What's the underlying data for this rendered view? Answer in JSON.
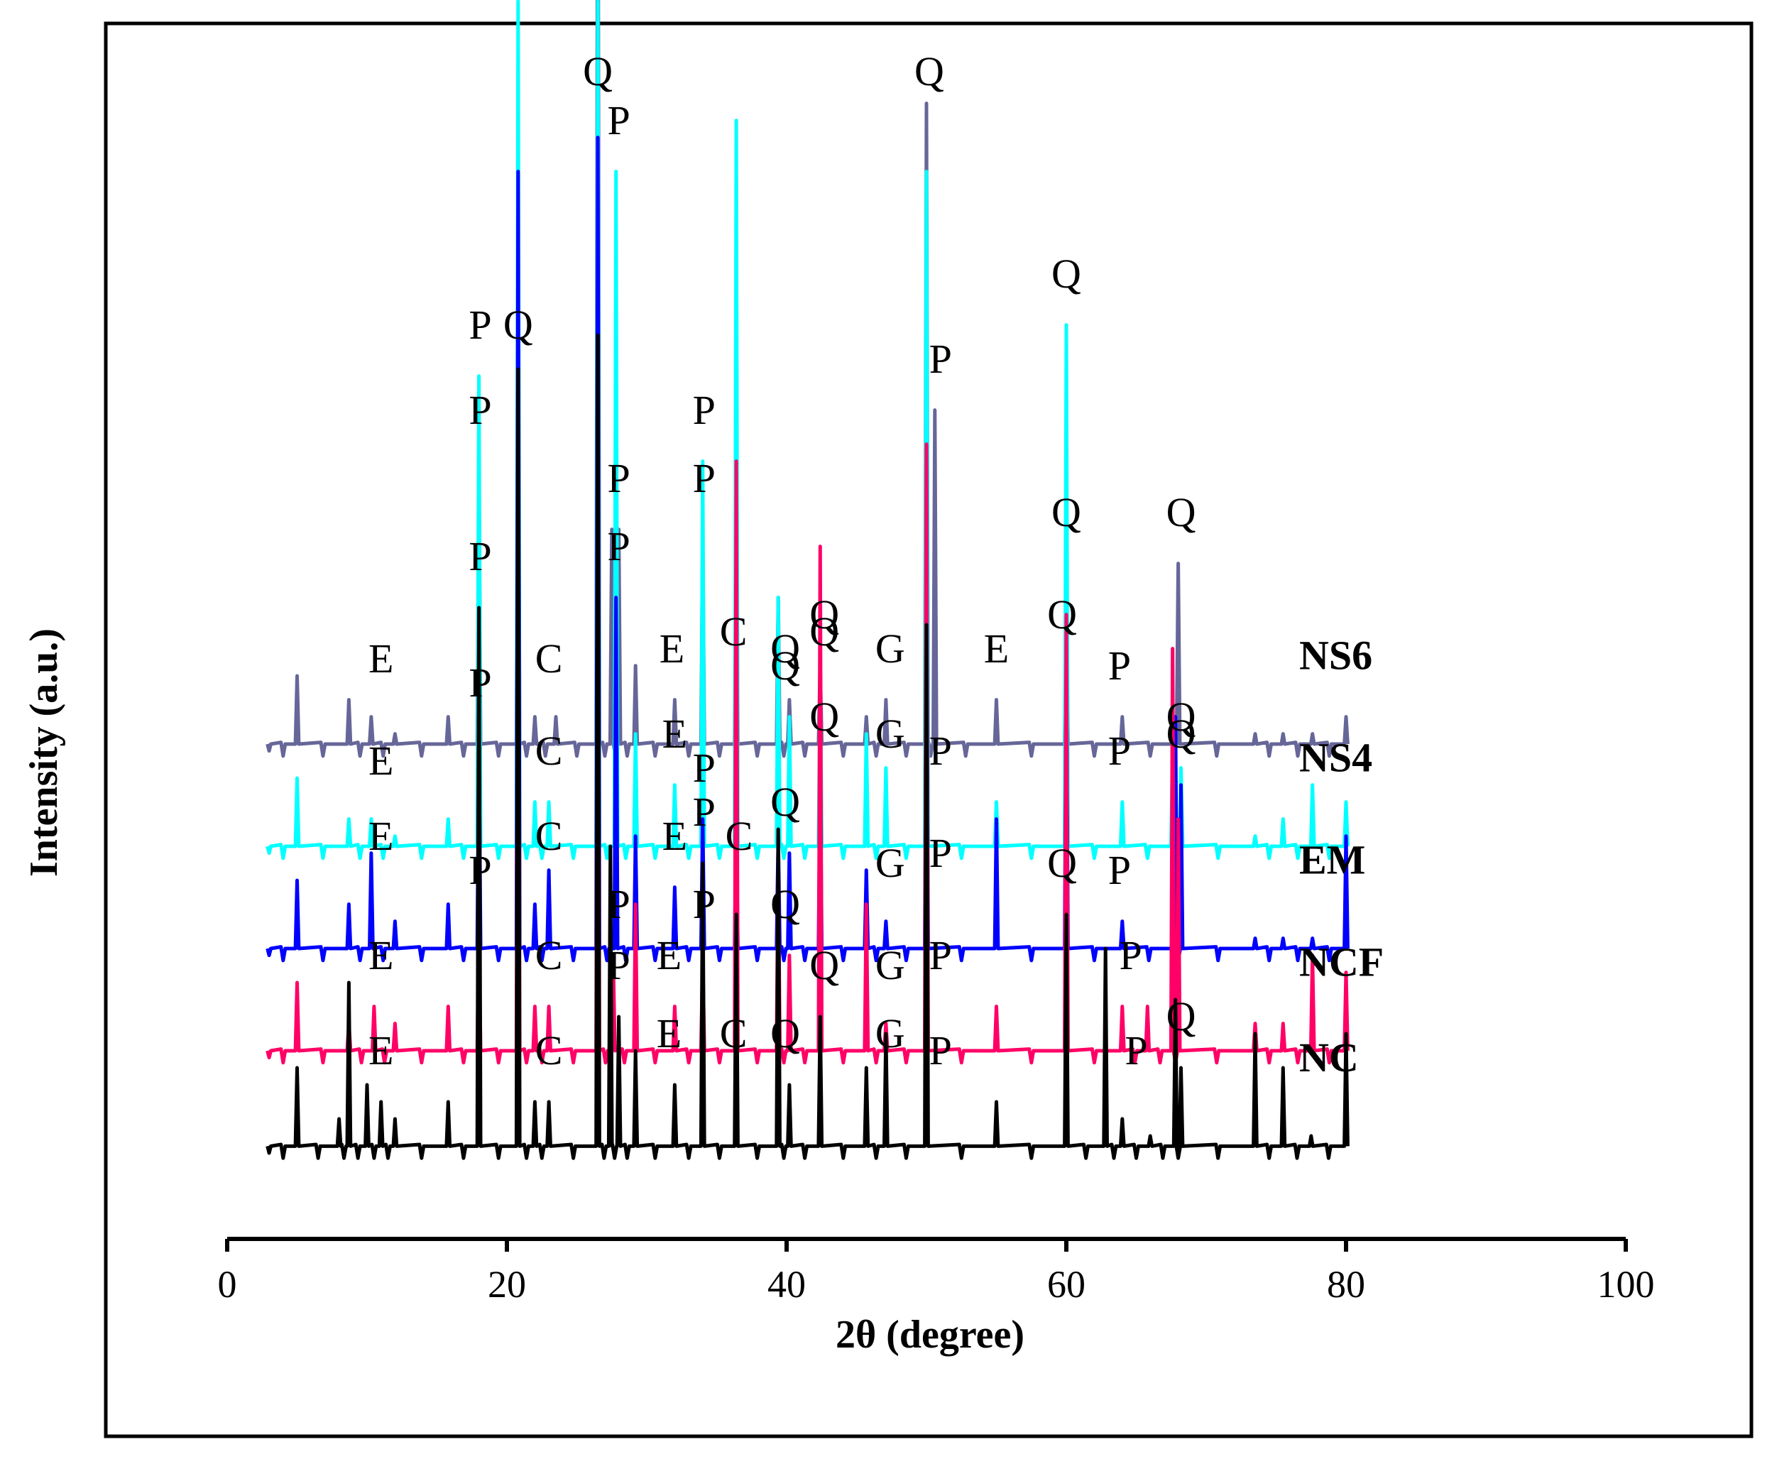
{
  "chart_data": {
    "type": "line",
    "title": "",
    "xlabel": "2θ (degree)",
    "ylabel": "Intensity (a.u.)",
    "xlim": [
      0,
      100
    ],
    "xticks": [
      0,
      20,
      40,
      60,
      80,
      100
    ],
    "xtick_labels": [
      "0",
      "20",
      "40",
      "60",
      "80",
      "100"
    ],
    "grid": false,
    "legend": "inline labels at right end of each trace",
    "series": [
      {
        "name": "NC",
        "color": "#000000",
        "baseline": 2.0,
        "x": [
          3,
          5,
          8,
          8.7,
          10,
          11,
          12,
          15.8,
          18,
          20.8,
          22,
          23,
          26.5,
          27.4,
          28,
          29.2,
          32,
          34,
          36.4,
          39.4,
          40.2,
          42.4,
          45.7,
          47.1,
          50,
          55,
          60,
          62.8,
          64,
          66,
          67.8,
          68.2,
          73.5,
          75.5,
          77.5,
          80
        ],
        "y": [
          0,
          2.5,
          1,
          5,
          2,
          1.5,
          1,
          1.5,
          16,
          23,
          1.5,
          1.5,
          24,
          9,
          4,
          3,
          2,
          8.5,
          7,
          9.5,
          2,
          4,
          2.5,
          3.5,
          15.5,
          1.5,
          7,
          6,
          1,
          0.5,
          4.5,
          2.5,
          3.5,
          2.5,
          0.5,
          3.5
        ]
      },
      {
        "name": "NCF",
        "color": "#ff0066",
        "baseline": 4.8,
        "x": [
          3,
          5,
          8.7,
          10.5,
          12,
          15.8,
          18,
          20.8,
          22,
          23,
          26.5,
          27.6,
          29.2,
          32,
          34,
          36.4,
          39.4,
          40.2,
          42.4,
          45.7,
          47.1,
          50,
          55,
          60,
          64,
          65.8,
          67.6,
          68,
          73.5,
          75.5,
          77.6,
          80
        ],
        "y": [
          0,
          2.2,
          1,
          1.5,
          1,
          1.5,
          4,
          18,
          1.5,
          1.5,
          19,
          3,
          4.5,
          1.5,
          3,
          17.5,
          6,
          3,
          15,
          4.5,
          1,
          18,
          1.5,
          13,
          1.5,
          1.5,
          12,
          7,
          1,
          1,
          3,
          2.5
        ]
      },
      {
        "name": "EM",
        "color": "#0000ff",
        "baseline": 7.8,
        "x": [
          3,
          5,
          8.7,
          10.3,
          12,
          15.8,
          18,
          20.8,
          22,
          23,
          26.5,
          27.8,
          29.2,
          32,
          34,
          36.4,
          39.4,
          40.2,
          42.4,
          45.7,
          47.1,
          50,
          55,
          60,
          64,
          67.8,
          68.2,
          73.5,
          75.5,
          77.6,
          80
        ],
        "y": [
          0,
          2.2,
          1.5,
          3,
          1,
          1.5,
          6.5,
          23,
          1.5,
          2.5,
          24,
          10.5,
          3.5,
          2,
          4,
          4,
          3.5,
          3,
          5.5,
          2.5,
          1,
          10.5,
          4,
          8.5,
          1,
          7,
          5,
          0.5,
          0.5,
          0.5,
          3.5
        ]
      },
      {
        "name": "NS4",
        "color": "#00ffff",
        "baseline": 10.8,
        "x": [
          3,
          5,
          8.7,
          10.3,
          12,
          15.8,
          18,
          20.8,
          22,
          23,
          26.5,
          27.8,
          29.2,
          32,
          34,
          36.4,
          39.4,
          40.2,
          42.4,
          45.7,
          47.1,
          50,
          55,
          60,
          64,
          67.6,
          68.2,
          73.5,
          75.5,
          77.6,
          80
        ],
        "y": [
          0,
          2.2,
          1,
          1,
          0.5,
          1,
          14,
          25,
          1.5,
          1.5,
          25,
          20,
          3.5,
          2,
          11.5,
          21.5,
          7.5,
          4,
          5,
          3.5,
          2.5,
          20,
          1.5,
          15.5,
          1.5,
          3,
          2.5,
          0.5,
          1,
          2,
          1.5
        ]
      },
      {
        "name": "NS6",
        "color": "#666699",
        "baseline": 13.8,
        "x": [
          3,
          5,
          8.7,
          10.3,
          12,
          15.8,
          18,
          20.8,
          22,
          23.5,
          26.5,
          27.5,
          28,
          29.2,
          32,
          34,
          36.4,
          39.4,
          40.2,
          42.4,
          45.7,
          47.1,
          50,
          50.6,
          55,
          60,
          64,
          68,
          73.5,
          75.5,
          77.6,
          80
        ],
        "y": [
          0,
          2.2,
          1.5,
          1,
          0.5,
          1,
          8.5,
          11,
          1,
          1,
          31,
          6.5,
          6.5,
          2.5,
          1.5,
          6.5,
          9.5,
          4.5,
          1.5,
          2.5,
          1,
          1.5,
          19,
          10,
          1.5,
          5.5,
          1,
          5.5,
          0.5,
          0.5,
          0.5,
          1
        ]
      }
    ],
    "annotations": [
      {
        "text": "Q",
        "series": "NS6",
        "x": 26.5
      },
      {
        "text": "P",
        "series": "NS6",
        "x": 18.1
      },
      {
        "text": "Q",
        "series": "NS6",
        "x": 20.8
      },
      {
        "text": "E",
        "series": "NS6",
        "x": 11.0
      },
      {
        "text": "C",
        "series": "NS6",
        "x": 23.0
      },
      {
        "text": "P",
        "series": "NS6",
        "x": 28.0
      },
      {
        "text": "E",
        "series": "NS6",
        "x": 31.8
      },
      {
        "text": "P",
        "series": "NS6",
        "x": 34.1
      },
      {
        "text": "C",
        "series": "NS6",
        "x": 36.2
      },
      {
        "text": "Q",
        "series": "NS6",
        "x": 39.9
      },
      {
        "text": "Q",
        "series": "NS6",
        "x": 42.7
      },
      {
        "text": "G",
        "series": "NS6",
        "x": 47.4
      },
      {
        "text": "Q",
        "series": "NS6",
        "x": 50.2
      },
      {
        "text": "P",
        "series": "NS6",
        "x": 51.0
      },
      {
        "text": "E",
        "series": "NS6",
        "x": 55.0
      },
      {
        "text": "Q",
        "series": "NS6",
        "x": 60.0
      },
      {
        "text": "P",
        "series": "NS6",
        "x": 63.8
      },
      {
        "text": "Q",
        "series": "NS6",
        "x": 68.2
      },
      {
        "text": "E",
        "series": "NS4",
        "x": 11.0
      },
      {
        "text": "P",
        "series": "NS4",
        "x": 18.1
      },
      {
        "text": "C",
        "series": "NS4",
        "x": 23.0
      },
      {
        "text": "P",
        "series": "NS4",
        "x": 28.0
      },
      {
        "text": "E",
        "series": "NS4",
        "x": 32.0
      },
      {
        "text": "P",
        "series": "NS4",
        "x": 34.1
      },
      {
        "text": "Q",
        "series": "NS4",
        "x": 39.9
      },
      {
        "text": "Q",
        "series": "NS4",
        "x": 42.7
      },
      {
        "text": "G",
        "series": "NS4",
        "x": 47.4
      },
      {
        "text": "P",
        "series": "NS4",
        "x": 51.0
      },
      {
        "text": "Q",
        "series": "NS4",
        "x": 60.0
      },
      {
        "text": "P",
        "series": "NS4",
        "x": 63.8
      },
      {
        "text": "Q",
        "series": "NS4",
        "x": 68.2
      },
      {
        "text": "E",
        "series": "EM",
        "x": 11.0
      },
      {
        "text": "P",
        "series": "EM",
        "x": 18.1
      },
      {
        "text": "C",
        "series": "EM",
        "x": 23.0
      },
      {
        "text": "P",
        "series": "EM",
        "x": 28.0
      },
      {
        "text": "E",
        "series": "EM",
        "x": 32.0
      },
      {
        "text": "P",
        "series": "EM",
        "x": 34.1
      },
      {
        "text": "C",
        "series": "EM",
        "x": 36.6
      },
      {
        "text": "Q",
        "series": "EM",
        "x": 39.9
      },
      {
        "text": "Q",
        "series": "EM",
        "x": 42.7
      },
      {
        "text": "G",
        "series": "EM",
        "x": 47.4
      },
      {
        "text": "P",
        "series": "EM",
        "x": 51.0
      },
      {
        "text": "Q",
        "series": "EM",
        "x": 59.7
      },
      {
        "text": "P",
        "series": "EM",
        "x": 63.8
      },
      {
        "text": "Q",
        "series": "EM",
        "x": 68.2
      },
      {
        "text": "E",
        "series": "NCF",
        "x": 11.0
      },
      {
        "text": "P",
        "series": "NCF",
        "x": 18.1
      },
      {
        "text": "C",
        "series": "NCF",
        "x": 23.0
      },
      {
        "text": "P",
        "series": "NCF",
        "x": 28.0
      },
      {
        "text": "E",
        "series": "NCF",
        "x": 31.6
      },
      {
        "text": "P",
        "series": "NCF",
        "x": 34.1
      },
      {
        "text": "Q",
        "series": "NCF",
        "x": 39.9
      },
      {
        "text": "G",
        "series": "NCF",
        "x": 47.4
      },
      {
        "text": "P",
        "series": "NCF",
        "x": 51.0
      },
      {
        "text": "P",
        "series": "NCF",
        "x": 64.6
      },
      {
        "text": "E",
        "series": "NC",
        "x": 11.0
      },
      {
        "text": "P",
        "series": "NC",
        "x": 18.1
      },
      {
        "text": "C",
        "series": "NC",
        "x": 23.0
      },
      {
        "text": "P",
        "series": "NC",
        "x": 28.0
      },
      {
        "text": "E",
        "series": "NC",
        "x": 31.6
      },
      {
        "text": "P",
        "series": "NC",
        "x": 34.1
      },
      {
        "text": "C",
        "series": "NC",
        "x": 36.2
      },
      {
        "text": "Q",
        "series": "NC",
        "x": 39.9
      },
      {
        "text": "Q",
        "series": "NC",
        "x": 42.7
      },
      {
        "text": "G",
        "series": "NC",
        "x": 47.4
      },
      {
        "text": "P",
        "series": "NC",
        "x": 51.0
      },
      {
        "text": "Q",
        "series": "NC",
        "x": 59.7
      },
      {
        "text": "P",
        "series": "NC",
        "x": 65.0
      },
      {
        "text": "Q",
        "series": "NC",
        "x": 68.2
      }
    ]
  }
}
